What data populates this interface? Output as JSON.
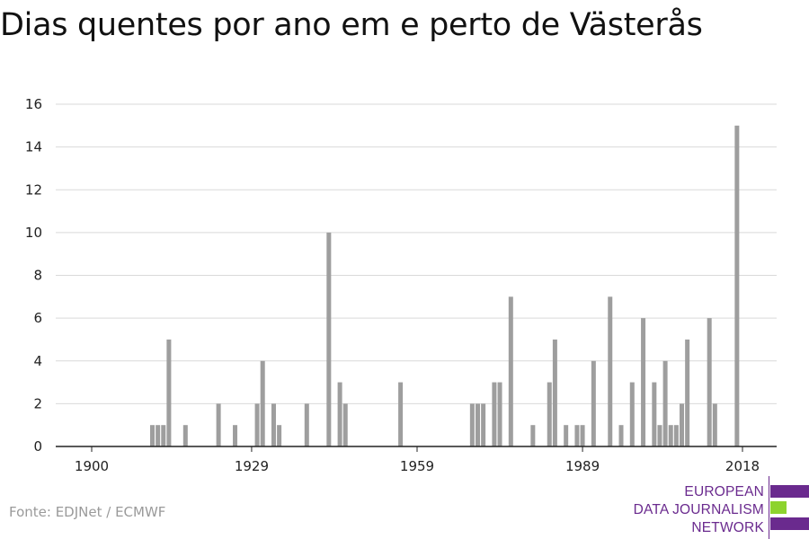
{
  "title": "Dias quentes por ano em e perto de Västerås",
  "source": "Fonte: EDJNet / ECMWF",
  "logo": {
    "lines": [
      "EUROPEAN",
      "DATA JOURNALISM",
      "NETWORK"
    ],
    "colors": {
      "purple": "#6a2a8e",
      "green": "#8dd32e"
    }
  },
  "colors": {
    "bar": "#9e9e9e",
    "grid": "#d9d9d9",
    "axis": "#222222"
  },
  "chart_data": {
    "type": "bar",
    "xlim": [
      1900,
      2018
    ],
    "ylim": [
      0,
      16
    ],
    "y_ticks": [
      0,
      2,
      4,
      6,
      8,
      10,
      12,
      14,
      16
    ],
    "x_ticks": [
      1900,
      1929,
      1959,
      1989,
      2018
    ],
    "grid": true,
    "x": [
      1911,
      1912,
      1913,
      1914,
      1917,
      1923,
      1926,
      1930,
      1931,
      1933,
      1934,
      1939,
      1943,
      1945,
      1946,
      1956,
      1969,
      1970,
      1971,
      1973,
      1974,
      1976,
      1980,
      1983,
      1984,
      1986,
      1988,
      1989,
      1991,
      1994,
      1996,
      1998,
      2000,
      2002,
      2003,
      2004,
      2005,
      2006,
      2007,
      2008,
      2012,
      2013,
      2017
    ],
    "values": [
      1,
      1,
      1,
      5,
      1,
      2,
      1,
      2,
      4,
      2,
      1,
      2,
      10,
      3,
      2,
      3,
      2,
      2,
      2,
      3,
      3,
      7,
      1,
      3,
      5,
      1,
      1,
      1,
      4,
      7,
      1,
      3,
      6,
      3,
      1,
      4,
      1,
      1,
      2,
      5,
      6,
      2,
      15
    ]
  }
}
